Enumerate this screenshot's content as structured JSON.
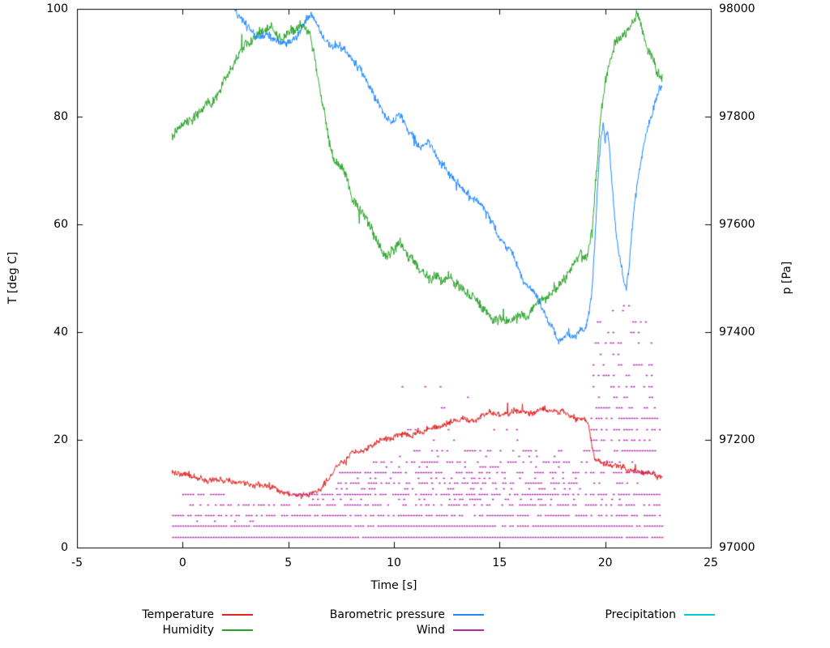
{
  "chart_data": {
    "type": "line",
    "title": "",
    "xlabel": "Time [s]",
    "ylabel_left": "T [deg C]",
    "ylabel_right": "p [Pa]",
    "xlim": [
      -5,
      25
    ],
    "ylim_left": [
      0,
      100
    ],
    "ylim_right": [
      97000,
      98000
    ],
    "x_ticks": [
      -5,
      0,
      5,
      10,
      15,
      20,
      25
    ],
    "y_left_ticks": [
      0,
      20,
      40,
      60,
      80,
      100
    ],
    "y_right_ticks": [
      97000,
      97200,
      97400,
      97600,
      97800,
      98000
    ],
    "grid": false,
    "legend_position": "bottom",
    "series": [
      {
        "name": "Temperature",
        "color": "#e02424",
        "axis": "left",
        "noise": 0.6,
        "points": [
          [
            -0.5,
            14
          ],
          [
            0,
            13.8
          ],
          [
            0.5,
            13.2
          ],
          [
            1,
            12.8
          ],
          [
            1.5,
            12.3
          ],
          [
            2,
            12
          ],
          [
            2.5,
            11.8
          ],
          [
            3,
            11.4
          ],
          [
            3.5,
            11.2
          ],
          [
            4,
            11
          ],
          [
            4.5,
            10.6
          ],
          [
            5,
            10.4
          ],
          [
            5.5,
            10.1
          ],
          [
            6,
            10
          ],
          [
            6.3,
            10.2
          ],
          [
            6.6,
            11.2
          ],
          [
            7,
            13.5
          ],
          [
            7.3,
            15
          ],
          [
            7.6,
            16.2
          ],
          [
            8,
            17.2
          ],
          [
            8.5,
            18.3
          ],
          [
            9,
            19.2
          ],
          [
            9.5,
            19.8
          ],
          [
            10,
            20.3
          ],
          [
            10.5,
            20.8
          ],
          [
            11,
            21.2
          ],
          [
            11.5,
            21.8
          ],
          [
            12,
            22.3
          ],
          [
            12.5,
            23
          ],
          [
            13,
            23.2
          ],
          [
            13.5,
            23.8
          ],
          [
            14,
            24.2
          ],
          [
            14.5,
            24.8
          ],
          [
            15,
            24.8
          ],
          [
            15.5,
            25.3
          ],
          [
            16,
            25.4
          ],
          [
            16.5,
            25.2
          ],
          [
            17,
            25.3
          ],
          [
            17.5,
            25.2
          ],
          [
            18,
            25.2
          ],
          [
            18.5,
            24.6
          ],
          [
            19,
            23.8
          ],
          [
            19.2,
            23.2
          ],
          [
            19.35,
            20
          ],
          [
            19.5,
            16.8
          ],
          [
            19.8,
            15.8
          ],
          [
            20,
            15.4
          ],
          [
            20.5,
            15
          ],
          [
            21,
            14.6
          ],
          [
            21.5,
            14.2
          ],
          [
            22,
            13.6
          ],
          [
            22.4,
            13.3
          ],
          [
            22.7,
            13.2
          ]
        ]
      },
      {
        "name": "Humidity",
        "color": "#2aa22a",
        "axis": "left",
        "noise": 1.1,
        "points": [
          [
            -0.5,
            76
          ],
          [
            0,
            78
          ],
          [
            0.5,
            79.5
          ],
          [
            1,
            80.5
          ],
          [
            1.5,
            83
          ],
          [
            2,
            87
          ],
          [
            2.5,
            90
          ],
          [
            3,
            92.5
          ],
          [
            3.3,
            93.5
          ],
          [
            3.6,
            95
          ],
          [
            4,
            96
          ],
          [
            4.3,
            95.2
          ],
          [
            4.6,
            94.8
          ],
          [
            5,
            95.4
          ],
          [
            5.4,
            95.8
          ],
          [
            5.7,
            96.3
          ],
          [
            6,
            95.2
          ],
          [
            6.2,
            92
          ],
          [
            6.4,
            87
          ],
          [
            6.6,
            83
          ],
          [
            6.8,
            79
          ],
          [
            7,
            74.5
          ],
          [
            7.2,
            71.5
          ],
          [
            7.5,
            70
          ],
          [
            7.8,
            68.5
          ],
          [
            8,
            65.5
          ],
          [
            8.3,
            63
          ],
          [
            8.6,
            61
          ],
          [
            9,
            58
          ],
          [
            9.3,
            56
          ],
          [
            9.6,
            55
          ],
          [
            10,
            55.5
          ],
          [
            10.3,
            56
          ],
          [
            10.6,
            54
          ],
          [
            11,
            52.5
          ],
          [
            11.5,
            51.5
          ],
          [
            12,
            50.5
          ],
          [
            12.5,
            50
          ],
          [
            13,
            48.5
          ],
          [
            13.5,
            47
          ],
          [
            14,
            45.5
          ],
          [
            14.5,
            43.5
          ],
          [
            15,
            42.5
          ],
          [
            15.5,
            42
          ],
          [
            16,
            42.5
          ],
          [
            16.5,
            43.5
          ],
          [
            17,
            45
          ],
          [
            17.5,
            47
          ],
          [
            18,
            49.5
          ],
          [
            18.4,
            52
          ],
          [
            18.8,
            54.5
          ],
          [
            19,
            54
          ],
          [
            19.2,
            54.5
          ],
          [
            19.4,
            60
          ],
          [
            19.6,
            70
          ],
          [
            19.8,
            80
          ],
          [
            20,
            86.5
          ],
          [
            20.2,
            90.5
          ],
          [
            20.5,
            93.5
          ],
          [
            20.8,
            95
          ],
          [
            21,
            96
          ],
          [
            21.2,
            97
          ],
          [
            21.5,
            98.8
          ],
          [
            21.7,
            97
          ],
          [
            21.9,
            94
          ],
          [
            22.1,
            91.5
          ],
          [
            22.3,
            90
          ],
          [
            22.5,
            88.5
          ],
          [
            22.7,
            88
          ]
        ]
      },
      {
        "name": "Barometric pressure",
        "color": "#1f87ff",
        "axis": "right",
        "noise": 8,
        "points": [
          [
            2.4,
            98005
          ],
          [
            2.6,
            97990
          ],
          [
            2.8,
            97980
          ],
          [
            3,
            97968
          ],
          [
            3.2,
            97958
          ],
          [
            3.5,
            97948
          ],
          [
            3.8,
            97950
          ],
          [
            4,
            97952
          ],
          [
            4.3,
            97946
          ],
          [
            4.6,
            97944
          ],
          [
            5,
            97940
          ],
          [
            5.3,
            97946
          ],
          [
            5.6,
            97962
          ],
          [
            5.8,
            97976
          ],
          [
            6,
            97986
          ],
          [
            6.15,
            97992
          ],
          [
            6.3,
            97978
          ],
          [
            6.5,
            97958
          ],
          [
            6.8,
            97940
          ],
          [
            7,
            97932
          ],
          [
            7.3,
            97928
          ],
          [
            7.6,
            97928
          ],
          [
            8,
            97904
          ],
          [
            8.3,
            97892
          ],
          [
            8.6,
            97878
          ],
          [
            9,
            97845
          ],
          [
            9.3,
            97822
          ],
          [
            9.6,
            97798
          ],
          [
            9.9,
            97788
          ],
          [
            10.1,
            97796
          ],
          [
            10.3,
            97800
          ],
          [
            10.6,
            97778
          ],
          [
            11,
            97752
          ],
          [
            11.3,
            97742
          ],
          [
            11.6,
            97752
          ],
          [
            12,
            97724
          ],
          [
            12.3,
            97710
          ],
          [
            12.6,
            97700
          ],
          [
            13,
            97682
          ],
          [
            13.3,
            97672
          ],
          [
            13.6,
            97652
          ],
          [
            14,
            97640
          ],
          [
            14.3,
            97625
          ],
          [
            14.6,
            97605
          ],
          [
            15,
            97572
          ],
          [
            15.3,
            97560
          ],
          [
            15.6,
            97548
          ],
          [
            16,
            97512
          ],
          [
            16.3,
            97490
          ],
          [
            16.6,
            97478
          ],
          [
            17,
            97442
          ],
          [
            17.3,
            97418
          ],
          [
            17.6,
            97392
          ],
          [
            17.8,
            97378
          ],
          [
            18,
            97386
          ],
          [
            18.2,
            97398
          ],
          [
            18.4,
            97392
          ],
          [
            18.6,
            97396
          ],
          [
            18.8,
            97408
          ],
          [
            19,
            97404
          ],
          [
            19.2,
            97428
          ],
          [
            19.35,
            97470
          ],
          [
            19.5,
            97560
          ],
          [
            19.65,
            97680
          ],
          [
            19.8,
            97765
          ],
          [
            19.9,
            97785
          ],
          [
            20,
            97755
          ],
          [
            20.1,
            97775
          ],
          [
            20.2,
            97740
          ],
          [
            20.35,
            97660
          ],
          [
            20.5,
            97590
          ],
          [
            20.7,
            97535
          ],
          [
            20.9,
            97495
          ],
          [
            21,
            97480
          ],
          [
            21.15,
            97530
          ],
          [
            21.3,
            97600
          ],
          [
            21.5,
            97665
          ],
          [
            21.7,
            97722
          ],
          [
            21.9,
            97762
          ],
          [
            22.1,
            97796
          ],
          [
            22.3,
            97822
          ],
          [
            22.5,
            97848
          ],
          [
            22.7,
            97862
          ]
        ]
      },
      {
        "name": "Wind",
        "color": "#b128b1",
        "axis": "left",
        "style": "dashed-segments",
        "segments": [
          {
            "y": 2,
            "x1": -0.5,
            "x2": 22.7,
            "d": 0.97
          },
          {
            "y": 4,
            "x1": -0.5,
            "x2": 22.7,
            "d": 0.92
          },
          {
            "y": 5,
            "x1": -0.2,
            "x2": 3.5,
            "d": 0.22
          },
          {
            "y": 6,
            "x1": -0.5,
            "x2": 22.6,
            "d": 0.78
          },
          {
            "y": 8,
            "x1": 0.2,
            "x2": 22.6,
            "d": 0.58
          },
          {
            "y": 9,
            "x1": 6,
            "x2": 21,
            "d": 0.28
          },
          {
            "y": 10,
            "x1": -0.5,
            "x2": 2,
            "d": 0.5
          },
          {
            "y": 10,
            "x1": 5,
            "x2": 22.6,
            "d": 0.75
          },
          {
            "y": 11,
            "x1": 7,
            "x2": 19,
            "d": 0.18
          },
          {
            "y": 12,
            "x1": 7.2,
            "x2": 21.6,
            "d": 0.5
          },
          {
            "y": 13,
            "x1": 8,
            "x2": 19,
            "d": 0.22
          },
          {
            "y": 14,
            "x1": 7.4,
            "x2": 22.5,
            "d": 0.62
          },
          {
            "y": 15,
            "x1": 9,
            "x2": 19,
            "d": 0.18
          },
          {
            "y": 16,
            "x1": 9,
            "x2": 21.8,
            "d": 0.35
          },
          {
            "y": 17,
            "x1": 10,
            "x2": 19,
            "d": 0.12
          },
          {
            "y": 18,
            "x1": 9.6,
            "x2": 19.2,
            "d": 0.3
          },
          {
            "y": 18,
            "x1": 19.2,
            "x2": 22.6,
            "d": 0.8
          },
          {
            "y": 20,
            "x1": 11,
            "x2": 16,
            "d": 0.07
          },
          {
            "y": 20,
            "x1": 19.3,
            "x2": 22.6,
            "d": 0.6
          },
          {
            "y": 22,
            "x1": 10.5,
            "x2": 16,
            "d": 0.1
          },
          {
            "y": 22,
            "x1": 19.3,
            "x2": 22.6,
            "d": 0.65
          },
          {
            "y": 24,
            "x1": 12,
            "x2": 15,
            "d": 0.06
          },
          {
            "y": 24,
            "x1": 19.3,
            "x2": 22.5,
            "d": 0.5
          },
          {
            "y": 26,
            "x1": 11.5,
            "x2": 15.5,
            "d": 0.09
          },
          {
            "y": 26,
            "x1": 19.3,
            "x2": 22.5,
            "d": 0.55
          },
          {
            "y": 28,
            "x1": 12.5,
            "x2": 14,
            "d": 0.06
          },
          {
            "y": 28,
            "x1": 19.3,
            "x2": 22.4,
            "d": 0.42
          },
          {
            "y": 30,
            "x1": 10,
            "x2": 12.5,
            "d": 0.07
          },
          {
            "y": 30,
            "x1": 19.4,
            "x2": 22.4,
            "d": 0.45
          },
          {
            "y": 32,
            "x1": 19.4,
            "x2": 22.3,
            "d": 0.35
          },
          {
            "y": 34,
            "x1": 19.4,
            "x2": 22.3,
            "d": 0.4
          },
          {
            "y": 36,
            "x1": 19.5,
            "x2": 22.2,
            "d": 0.3
          },
          {
            "y": 38,
            "x1": 19.5,
            "x2": 22.2,
            "d": 0.32
          },
          {
            "y": 40,
            "x1": 19.5,
            "x2": 22.0,
            "d": 0.25
          },
          {
            "y": 42,
            "x1": 19.6,
            "x2": 21.9,
            "d": 0.2
          },
          {
            "y": 44,
            "x1": 19.6,
            "x2": 21.8,
            "d": 0.15
          },
          {
            "y": 45,
            "x1": 20,
            "x2": 21.5,
            "d": 0.1
          }
        ]
      },
      {
        "name": "Precipitation",
        "color": "#00cdcd",
        "axis": "left",
        "noise": 0,
        "points": []
      }
    ]
  }
}
